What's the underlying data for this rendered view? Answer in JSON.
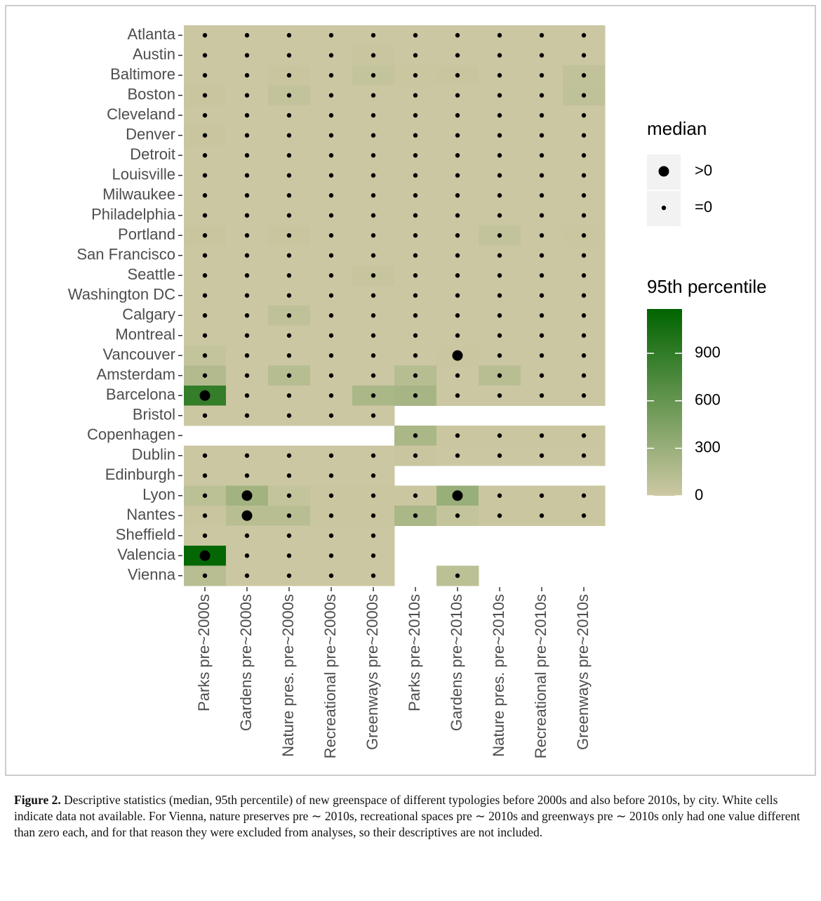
{
  "chart_data": {
    "type": "heatmap",
    "x_categories": [
      "Parks pre~2000s",
      "Gardens pre~2000s",
      "Nature pres. pre~2000s",
      "Recreational pre~2000s",
      "Greenways pre~2000s",
      "Parks pre~2010s",
      "Gardens pre~2010s",
      "Nature pres. pre~2010s",
      "Recreational pre~2010s",
      "Greenways pre~2010s"
    ],
    "y_categories": [
      "Atlanta",
      "Austin",
      "Baltimore",
      "Boston",
      "Cleveland",
      "Denver",
      "Detroit",
      "Louisville",
      "Milwaukee",
      "Philadelphia",
      "Portland",
      "San Francisco",
      "Seattle",
      "Washington DC",
      "Calgary",
      "Montreal",
      "Vancouver",
      "Amsterdam",
      "Barcelona",
      "Bristol",
      "Copenhagen",
      "Dublin",
      "Edinburgh",
      "Lyon",
      "Nantes",
      "Sheffield",
      "Valencia",
      "Vienna"
    ],
    "values": [
      [
        10,
        10,
        10,
        10,
        10,
        10,
        10,
        10,
        10,
        10
      ],
      [
        10,
        10,
        10,
        10,
        30,
        10,
        10,
        10,
        10,
        10
      ],
      [
        10,
        10,
        30,
        10,
        50,
        20,
        30,
        10,
        10,
        70
      ],
      [
        30,
        10,
        60,
        10,
        10,
        10,
        10,
        10,
        10,
        80
      ],
      [
        10,
        10,
        10,
        10,
        10,
        10,
        10,
        10,
        10,
        10
      ],
      [
        30,
        10,
        10,
        10,
        10,
        10,
        10,
        10,
        10,
        10
      ],
      [
        10,
        10,
        10,
        10,
        10,
        10,
        10,
        10,
        10,
        10
      ],
      [
        10,
        10,
        10,
        10,
        10,
        10,
        10,
        10,
        10,
        10
      ],
      [
        10,
        10,
        10,
        10,
        10,
        10,
        10,
        10,
        10,
        10
      ],
      [
        10,
        10,
        10,
        10,
        10,
        10,
        10,
        10,
        10,
        10
      ],
      [
        30,
        10,
        30,
        10,
        10,
        10,
        10,
        60,
        10,
        20
      ],
      [
        10,
        10,
        10,
        10,
        10,
        10,
        10,
        10,
        10,
        10
      ],
      [
        10,
        10,
        10,
        10,
        40,
        10,
        10,
        10,
        10,
        10
      ],
      [
        10,
        10,
        10,
        10,
        10,
        10,
        10,
        10,
        10,
        10
      ],
      [
        10,
        10,
        80,
        10,
        10,
        10,
        10,
        10,
        10,
        10
      ],
      [
        10,
        10,
        10,
        10,
        10,
        10,
        10,
        10,
        10,
        10
      ],
      [
        50,
        10,
        10,
        10,
        10,
        10,
        20,
        10,
        10,
        10
      ],
      [
        150,
        10,
        130,
        10,
        10,
        130,
        10,
        120,
        10,
        10
      ],
      [
        880,
        10,
        10,
        10,
        200,
        220,
        10,
        10,
        10,
        10
      ],
      [
        10,
        10,
        10,
        10,
        10,
        null,
        null,
        null,
        null,
        null
      ],
      [
        null,
        null,
        null,
        null,
        null,
        200,
        20,
        20,
        20,
        20
      ],
      [
        10,
        10,
        10,
        10,
        10,
        30,
        10,
        10,
        10,
        10
      ],
      [
        10,
        10,
        10,
        10,
        10,
        null,
        null,
        null,
        null,
        null
      ],
      [
        100,
        250,
        50,
        20,
        20,
        20,
        300,
        20,
        20,
        20
      ],
      [
        30,
        120,
        120,
        20,
        20,
        200,
        50,
        20,
        20,
        20
      ],
      [
        10,
        10,
        10,
        10,
        10,
        null,
        null,
        null,
        null,
        null
      ],
      [
        1150,
        10,
        10,
        10,
        10,
        null,
        null,
        null,
        null,
        null
      ],
      [
        120,
        10,
        10,
        10,
        10,
        null,
        100,
        null,
        null,
        null
      ]
    ],
    "median": [
      [
        "=0",
        "=0",
        "=0",
        "=0",
        "=0",
        "=0",
        "=0",
        "=0",
        "=0",
        "=0"
      ],
      [
        "=0",
        "=0",
        "=0",
        "=0",
        "=0",
        "=0",
        "=0",
        "=0",
        "=0",
        "=0"
      ],
      [
        "=0",
        "=0",
        "=0",
        "=0",
        "=0",
        "=0",
        "=0",
        "=0",
        "=0",
        "=0"
      ],
      [
        "=0",
        "=0",
        "=0",
        "=0",
        "=0",
        "=0",
        "=0",
        "=0",
        "=0",
        "=0"
      ],
      [
        "=0",
        "=0",
        "=0",
        "=0",
        "=0",
        "=0",
        "=0",
        "=0",
        "=0",
        "=0"
      ],
      [
        "=0",
        "=0",
        "=0",
        "=0",
        "=0",
        "=0",
        "=0",
        "=0",
        "=0",
        "=0"
      ],
      [
        "=0",
        "=0",
        "=0",
        "=0",
        "=0",
        "=0",
        "=0",
        "=0",
        "=0",
        "=0"
      ],
      [
        "=0",
        "=0",
        "=0",
        "=0",
        "=0",
        "=0",
        "=0",
        "=0",
        "=0",
        "=0"
      ],
      [
        "=0",
        "=0",
        "=0",
        "=0",
        "=0",
        "=0",
        "=0",
        "=0",
        "=0",
        "=0"
      ],
      [
        "=0",
        "=0",
        "=0",
        "=0",
        "=0",
        "=0",
        "=0",
        "=0",
        "=0",
        "=0"
      ],
      [
        "=0",
        "=0",
        "=0",
        "=0",
        "=0",
        "=0",
        "=0",
        "=0",
        "=0",
        "=0"
      ],
      [
        "=0",
        "=0",
        "=0",
        "=0",
        "=0",
        "=0",
        "=0",
        "=0",
        "=0",
        "=0"
      ],
      [
        "=0",
        "=0",
        "=0",
        "=0",
        "=0",
        "=0",
        "=0",
        "=0",
        "=0",
        "=0"
      ],
      [
        "=0",
        "=0",
        "=0",
        "=0",
        "=0",
        "=0",
        "=0",
        "=0",
        "=0",
        "=0"
      ],
      [
        "=0",
        "=0",
        "=0",
        "=0",
        "=0",
        "=0",
        "=0",
        "=0",
        "=0",
        "=0"
      ],
      [
        "=0",
        "=0",
        "=0",
        "=0",
        "=0",
        "=0",
        "=0",
        "=0",
        "=0",
        "=0"
      ],
      [
        "=0",
        "=0",
        "=0",
        "=0",
        "=0",
        "=0",
        ">0",
        "=0",
        "=0",
        "=0"
      ],
      [
        "=0",
        "=0",
        "=0",
        "=0",
        "=0",
        "=0",
        "=0",
        "=0",
        "=0",
        "=0"
      ],
      [
        ">0",
        "=0",
        "=0",
        "=0",
        "=0",
        "=0",
        "=0",
        "=0",
        "=0",
        "=0"
      ],
      [
        "=0",
        "=0",
        "=0",
        "=0",
        "=0",
        null,
        null,
        null,
        null,
        null
      ],
      [
        null,
        null,
        null,
        null,
        null,
        "=0",
        "=0",
        "=0",
        "=0",
        "=0"
      ],
      [
        "=0",
        "=0",
        "=0",
        "=0",
        "=0",
        "=0",
        "=0",
        "=0",
        "=0",
        "=0"
      ],
      [
        "=0",
        "=0",
        "=0",
        "=0",
        "=0",
        null,
        null,
        null,
        null,
        null
      ],
      [
        "=0",
        ">0",
        "=0",
        "=0",
        "=0",
        "=0",
        ">0",
        "=0",
        "=0",
        "=0"
      ],
      [
        "=0",
        ">0",
        "=0",
        "=0",
        "=0",
        "=0",
        "=0",
        "=0",
        "=0",
        "=0"
      ],
      [
        "=0",
        "=0",
        "=0",
        "=0",
        "=0",
        null,
        null,
        null,
        null,
        null
      ],
      [
        ">0",
        "=0",
        "=0",
        "=0",
        "=0",
        null,
        null,
        null,
        null,
        null
      ],
      [
        "=0",
        "=0",
        "=0",
        "=0",
        "=0",
        null,
        "=0",
        null,
        null,
        null
      ]
    ],
    "median_title": "median",
    "median_levels": [
      ">0",
      "=0"
    ],
    "colorbar_title": "95th percentile",
    "clim": [
      0,
      1180
    ],
    "cticks": [
      0,
      300,
      600,
      900
    ],
    "colors": [
      "#cdc8a3",
      "#006400"
    ],
    "caption_label": "Figure 2.",
    "caption": "Descriptive statistics (median, 95th percentile) of new greenspace of different typologies before 2000s and also before 2010s, by city. White cells indicate data not available. For Vienna, nature preserves pre ∼ 2010s, recreational spaces pre ∼ 2010s and greenways pre ∼ 2010s only had one value different than zero each, and for that reason they were excluded from analyses, so their descriptives are not included."
  }
}
